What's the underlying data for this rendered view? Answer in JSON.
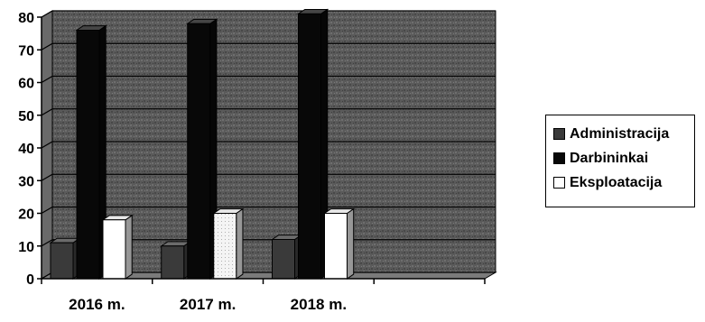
{
  "chart_data": {
    "type": "bar",
    "categories": [
      "2016 m.",
      "2017 m.",
      "2018 m."
    ],
    "series": [
      {
        "name": "Administracija",
        "values": [
          11,
          10,
          12
        ],
        "color": "#3a3a3a"
      },
      {
        "name": "Darbininkai",
        "values": [
          76,
          78,
          81
        ],
        "color": "#080808"
      },
      {
        "name": "Eksploatacija",
        "values": [
          18,
          20,
          20
        ],
        "color": "#ffffff"
      }
    ],
    "ylim": [
      0,
      80
    ],
    "yticks": [
      "0",
      "10",
      "20",
      "30",
      "40",
      "50",
      "60",
      "70",
      "80"
    ],
    "grid": true,
    "legend_position": "right",
    "style": "3d-column",
    "colors": {
      "plot_background": "#5a5a5a",
      "gridline": "#000000"
    }
  }
}
